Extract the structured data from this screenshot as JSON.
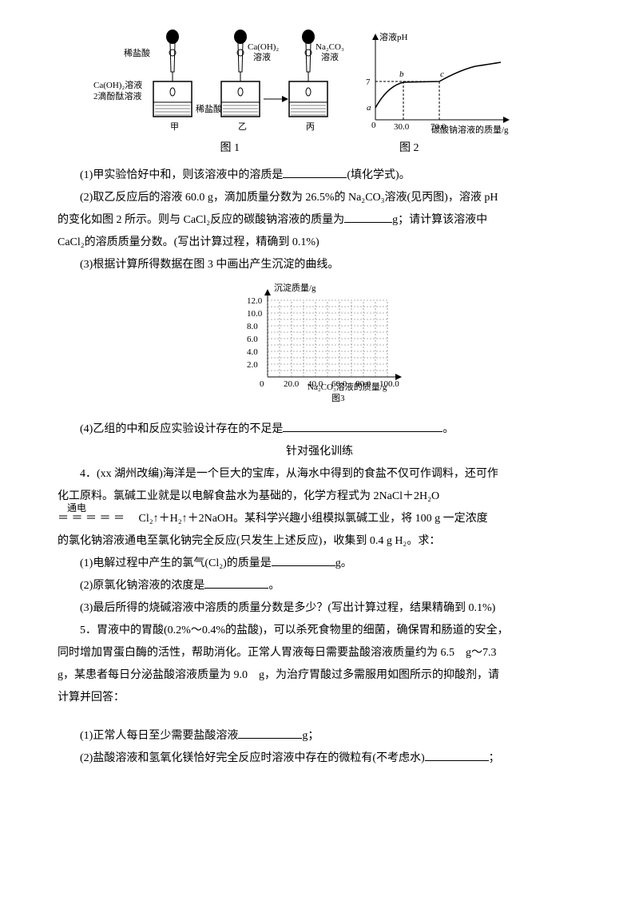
{
  "fig1": {
    "app1_reagent": "稀盐酸",
    "app1_beaker_l1": "Ca(OH)₂溶液",
    "app1_beaker_l2": "2滴酚酞溶液",
    "app1_label": "甲",
    "app2_reagent_l1": "Ca(OH)₂",
    "app2_reagent_l2": "溶液",
    "app2_beaker": "稀盐酸",
    "app2_label": "乙",
    "app3_reagent_l1": "Na₂CO₃",
    "app3_reagent_l2": "溶液",
    "app3_label": "丙",
    "caption": "图 1"
  },
  "fig2": {
    "ylabel": "溶液pH",
    "xlabel": "碳酸钠溶液的质量/g",
    "ytick": "7",
    "xtick1": "30.0",
    "xtick2": "70.0",
    "pt_a": "a",
    "pt_b": "b",
    "pt_c": "c",
    "caption": "图 2",
    "curve_color": "#000000",
    "axis_color": "#000000",
    "bg": "#ffffff"
  },
  "fig3": {
    "ylabel": "沉淀质量/g",
    "xlabel": "Na₂CO₃溶液的质量/g",
    "yticks": [
      "2.0",
      "4.0",
      "6.0",
      "8.0",
      "10.0",
      "12.0"
    ],
    "xticks": [
      "0",
      "20.0",
      "40.0",
      "60.0",
      "80.0",
      "100.0"
    ],
    "grid_color": "#666666",
    "axis_color": "#000000",
    "caption": "图3"
  },
  "text": {
    "q1": "(1)甲实验恰好中和，则该溶液中的溶质是",
    "q1_suffix": "(填化学式)。",
    "q2a": "(2)取乙反应后的溶液 60.0 g，滴加质量分数为 26.5%的 Na₂CO₃溶液(见丙图)，溶液 pH",
    "q2b": "的变化如图 2 所示。则与 CaCl₂反应的碳酸钠溶液的质量为",
    "q2b_suffix": "g；请计算该溶液中",
    "q2c": "CaCl₂的溶质质量分数。(写出计算过程，精确到 0.1%)",
    "q3": "(3)根据计算所得数据在图 3 中画出产生沉淀的曲线。",
    "q4": "(4)乙组的中和反应实验设计存在的不足是",
    "q4_suffix": "。",
    "section": "针对强化训练",
    "p4a": "4．(xx 湖州改编)海洋是一个巨大的宝库，从海水中得到的食盐不仅可作调料，还可作",
    "p4b": "化工原料。氯碱工业就是以电解食盐水为基础的，化学方程式为 2NaCl＋2H₂O",
    "p4eq_pre": "＝ ＝ ＝ ＝ ＝",
    "p4eq_cond": "通电",
    "p4c": "Cl₂↑＋H₂↑＋2NaOH。某科学兴趣小组模拟氯碱工业，将 100 g 一定浓度",
    "p4d": "的氯化钠溶液通电至氯化钠完全反应(只发生上述反应)，收集到 0.4 g H₂。求：",
    "p4_1": "(1)电解过程中产生的氯气(Cl₂)的质量是",
    "p4_1_suffix": "g。",
    "p4_2": "(2)原氯化钠溶液的浓度是",
    "p4_2_suffix": "。",
    "p4_3": "(3)最后所得的烧碱溶液中溶质的质量分数是多少？(写出计算过程，结果精确到 0.1%)",
    "p5a": "5．胃液中的胃酸(0.2%～0.4%的盐酸)，可以杀死食物里的细菌，确保胃和肠道的安全，",
    "p5b": "同时增加胃蛋白酶的活性，帮助消化。正常人胃液每日需要盐酸溶液质量约为 6.5　g～7.3",
    "p5c": "g，某患者每日分泌盐酸溶液质量为 9.0　g，为治疗胃酸过多需服用如图所示的抑酸剂，请",
    "p5d": "计算并回答：",
    "p5_1": "(1)正常人每日至少需要盐酸溶液",
    "p5_1_suffix": "g；",
    "p5_2": "(2)盐酸溶液和氢氧化镁恰好完全反应时溶液中存在的微粒有(不考虑水)",
    "p5_2_suffix": "；"
  }
}
